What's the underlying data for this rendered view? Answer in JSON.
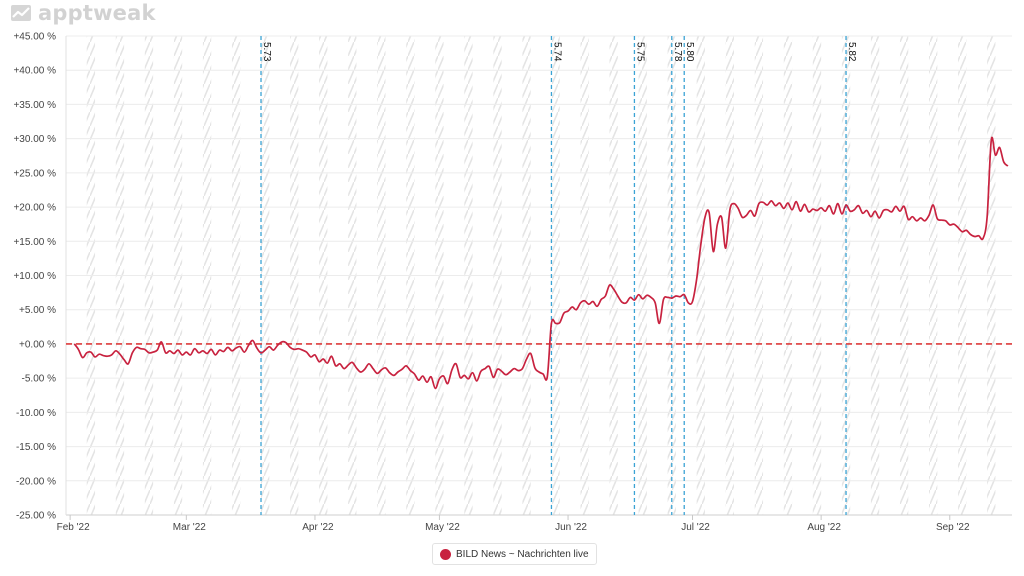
{
  "brand": {
    "name": "apptweak"
  },
  "chart_data": {
    "type": "line",
    "title": "",
    "xlabel": "",
    "ylabel": "",
    "x_range": [
      "2022-01-31",
      "2022-09-16"
    ],
    "ylim": [
      -25,
      45
    ],
    "ytick_values": [
      -25,
      -20,
      -15,
      -10,
      -5,
      0,
      5,
      10,
      15,
      20,
      25,
      30,
      35,
      40,
      45
    ],
    "ytick_labels": [
      "-25.00 %",
      "-20.00 %",
      "-15.00 %",
      "-10.00 %",
      "-5.00 %",
      "+0.00 %",
      "+5.00 %",
      "+10.00 %",
      "+15.00 %",
      "+20.00 %",
      "+25.00 %",
      "+30.00 %",
      "+35.00 %",
      "+40.00 %",
      "+45.00 %"
    ],
    "xticks": [
      {
        "date": "2022-02-01",
        "label": "Feb '22"
      },
      {
        "date": "2022-03-01",
        "label": "Mar '22"
      },
      {
        "date": "2022-04-01",
        "label": "Apr '22"
      },
      {
        "date": "2022-05-01",
        "label": "May '22"
      },
      {
        "date": "2022-06-01",
        "label": "Jun '22"
      },
      {
        "date": "2022-07-01",
        "label": "Jul '22"
      },
      {
        "date": "2022-08-01",
        "label": "Aug '22"
      },
      {
        "date": "2022-09-01",
        "label": "Sep '22"
      }
    ],
    "reference_line": {
      "y": 0,
      "color": "#dd3b3b",
      "style": "dashed"
    },
    "version_markers": [
      {
        "date": "2022-03-19",
        "label": "5.73"
      },
      {
        "date": "2022-05-28",
        "label": "5.74"
      },
      {
        "date": "2022-06-17",
        "label": "5.75"
      },
      {
        "date": "2022-06-26",
        "label": "5.78"
      },
      {
        "date": "2022-06-29",
        "label": "5.80"
      },
      {
        "date": "2022-08-07",
        "label": "5.82"
      }
    ],
    "series": [
      {
        "name": "BILD News ~ Nachrichten live",
        "color": "#c8223f",
        "points": [
          [
            "2022-02-02",
            0.0
          ],
          [
            "2022-02-03",
            -0.8
          ],
          [
            "2022-02-04",
            -2.0
          ],
          [
            "2022-02-05",
            -1.3
          ],
          [
            "2022-02-06",
            -1.2
          ],
          [
            "2022-02-07",
            -1.9
          ],
          [
            "2022-02-08",
            -1.5
          ],
          [
            "2022-02-09",
            -1.7
          ],
          [
            "2022-02-10",
            -1.8
          ],
          [
            "2022-02-11",
            -1.6
          ],
          [
            "2022-02-12",
            -1.0
          ],
          [
            "2022-02-13",
            -1.5
          ],
          [
            "2022-02-14",
            -2.3
          ],
          [
            "2022-02-15",
            -2.9
          ],
          [
            "2022-02-16",
            -1.3
          ],
          [
            "2022-02-17",
            -0.5
          ],
          [
            "2022-02-18",
            -0.7
          ],
          [
            "2022-02-19",
            -0.8
          ],
          [
            "2022-02-20",
            -1.3
          ],
          [
            "2022-02-21",
            -1.2
          ],
          [
            "2022-02-22",
            -0.9
          ],
          [
            "2022-02-23",
            0.3
          ],
          [
            "2022-02-24",
            -1.3
          ],
          [
            "2022-02-25",
            -1.0
          ],
          [
            "2022-02-26",
            -1.4
          ],
          [
            "2022-02-27",
            -0.9
          ],
          [
            "2022-02-28",
            -1.6
          ],
          [
            "2022-03-01",
            -1.2
          ],
          [
            "2022-03-02",
            -1.6
          ],
          [
            "2022-03-03",
            -0.7
          ],
          [
            "2022-03-04",
            -1.3
          ],
          [
            "2022-03-05",
            -1.0
          ],
          [
            "2022-03-06",
            -1.4
          ],
          [
            "2022-03-07",
            -0.8
          ],
          [
            "2022-03-08",
            -1.6
          ],
          [
            "2022-03-09",
            -0.9
          ],
          [
            "2022-03-10",
            -1.1
          ],
          [
            "2022-03-11",
            -0.5
          ],
          [
            "2022-03-12",
            -1.0
          ],
          [
            "2022-03-13",
            -0.6
          ],
          [
            "2022-03-14",
            -0.4
          ],
          [
            "2022-03-15",
            -1.2
          ],
          [
            "2022-03-16",
            -0.2
          ],
          [
            "2022-03-17",
            0.5
          ],
          [
            "2022-03-18",
            -0.6
          ],
          [
            "2022-03-19",
            -1.3
          ],
          [
            "2022-03-20",
            -0.9
          ],
          [
            "2022-03-21",
            -0.4
          ],
          [
            "2022-03-22",
            -0.9
          ],
          [
            "2022-03-23",
            -0.2
          ],
          [
            "2022-03-24",
            0.3
          ],
          [
            "2022-03-25",
            0.2
          ],
          [
            "2022-03-26",
            -0.5
          ],
          [
            "2022-03-27",
            -0.8
          ],
          [
            "2022-03-28",
            -0.7
          ],
          [
            "2022-03-29",
            -0.9
          ],
          [
            "2022-03-30",
            -1.2
          ],
          [
            "2022-03-31",
            -1.9
          ],
          [
            "2022-04-01",
            -1.6
          ],
          [
            "2022-04-02",
            -2.6
          ],
          [
            "2022-04-03",
            -2.2
          ],
          [
            "2022-04-04",
            -2.8
          ],
          [
            "2022-04-05",
            -1.8
          ],
          [
            "2022-04-06",
            -3.2
          ],
          [
            "2022-04-07",
            -2.9
          ],
          [
            "2022-04-08",
            -3.6
          ],
          [
            "2022-04-09",
            -3.1
          ],
          [
            "2022-04-10",
            -2.7
          ],
          [
            "2022-04-11",
            -3.5
          ],
          [
            "2022-04-12",
            -4.1
          ],
          [
            "2022-04-13",
            -3.7
          ],
          [
            "2022-04-14",
            -2.9
          ],
          [
            "2022-04-15",
            -3.6
          ],
          [
            "2022-04-16",
            -4.3
          ],
          [
            "2022-04-17",
            -3.8
          ],
          [
            "2022-04-18",
            -3.5
          ],
          [
            "2022-04-19",
            -4.2
          ],
          [
            "2022-04-20",
            -4.6
          ],
          [
            "2022-04-21",
            -4.1
          ],
          [
            "2022-04-22",
            -3.7
          ],
          [
            "2022-04-23",
            -3.2
          ],
          [
            "2022-04-24",
            -3.9
          ],
          [
            "2022-04-25",
            -4.4
          ],
          [
            "2022-04-26",
            -5.3
          ],
          [
            "2022-04-27",
            -4.7
          ],
          [
            "2022-04-28",
            -5.6
          ],
          [
            "2022-04-29",
            -4.8
          ],
          [
            "2022-04-30",
            -6.5
          ],
          [
            "2022-05-01",
            -5.1
          ],
          [
            "2022-05-02",
            -4.7
          ],
          [
            "2022-05-03",
            -5.8
          ],
          [
            "2022-05-04",
            -3.8
          ],
          [
            "2022-05-05",
            -2.9
          ],
          [
            "2022-05-06",
            -4.9
          ],
          [
            "2022-05-07",
            -4.6
          ],
          [
            "2022-05-08",
            -5.1
          ],
          [
            "2022-05-09",
            -4.2
          ],
          [
            "2022-05-10",
            -5.4
          ],
          [
            "2022-05-11",
            -4.0
          ],
          [
            "2022-05-12",
            -3.6
          ],
          [
            "2022-05-13",
            -3.3
          ],
          [
            "2022-05-14",
            -4.9
          ],
          [
            "2022-05-15",
            -3.7
          ],
          [
            "2022-05-16",
            -4.0
          ],
          [
            "2022-05-17",
            -4.5
          ],
          [
            "2022-05-18",
            -4.1
          ],
          [
            "2022-05-19",
            -3.6
          ],
          [
            "2022-05-20",
            -3.9
          ],
          [
            "2022-05-21",
            -3.6
          ],
          [
            "2022-05-22",
            -2.2
          ],
          [
            "2022-05-23",
            -1.4
          ],
          [
            "2022-05-24",
            -3.5
          ],
          [
            "2022-05-25",
            -4.1
          ],
          [
            "2022-05-26",
            -4.4
          ],
          [
            "2022-05-27",
            -4.8
          ],
          [
            "2022-05-28",
            3.0
          ],
          [
            "2022-05-29",
            3.0
          ],
          [
            "2022-05-30",
            3.1
          ],
          [
            "2022-05-31",
            4.5
          ],
          [
            "2022-06-01",
            4.8
          ],
          [
            "2022-06-02",
            5.4
          ],
          [
            "2022-06-03",
            5.0
          ],
          [
            "2022-06-04",
            6.0
          ],
          [
            "2022-06-05",
            6.3
          ],
          [
            "2022-06-06",
            5.8
          ],
          [
            "2022-06-07",
            6.2
          ],
          [
            "2022-06-08",
            5.5
          ],
          [
            "2022-06-09",
            6.5
          ],
          [
            "2022-06-10",
            7.0
          ],
          [
            "2022-06-11",
            8.6
          ],
          [
            "2022-06-12",
            8.0
          ],
          [
            "2022-06-13",
            7.0
          ],
          [
            "2022-06-14",
            6.1
          ],
          [
            "2022-06-15",
            6.0
          ],
          [
            "2022-06-16",
            6.8
          ],
          [
            "2022-06-17",
            6.4
          ],
          [
            "2022-06-18",
            7.2
          ],
          [
            "2022-06-19",
            6.6
          ],
          [
            "2022-06-20",
            7.1
          ],
          [
            "2022-06-21",
            6.8
          ],
          [
            "2022-06-22",
            6.0
          ],
          [
            "2022-06-23",
            3.0
          ],
          [
            "2022-06-24",
            6.5
          ],
          [
            "2022-06-25",
            6.8
          ],
          [
            "2022-06-26",
            6.7
          ],
          [
            "2022-06-27",
            7.0
          ],
          [
            "2022-06-28",
            6.9
          ],
          [
            "2022-06-29",
            7.2
          ],
          [
            "2022-06-30",
            6.0
          ],
          [
            "2022-07-01",
            6.2
          ],
          [
            "2022-07-02",
            9.5
          ],
          [
            "2022-07-03",
            14.5
          ],
          [
            "2022-07-04",
            18.5
          ],
          [
            "2022-07-05",
            19.2
          ],
          [
            "2022-07-06",
            13.5
          ],
          [
            "2022-07-07",
            17.5
          ],
          [
            "2022-07-08",
            18.5
          ],
          [
            "2022-07-09",
            14.0
          ],
          [
            "2022-07-10",
            19.6
          ],
          [
            "2022-07-11",
            20.5
          ],
          [
            "2022-07-12",
            19.8
          ],
          [
            "2022-07-13",
            18.5
          ],
          [
            "2022-07-14",
            18.8
          ],
          [
            "2022-07-15",
            19.5
          ],
          [
            "2022-07-16",
            18.7
          ],
          [
            "2022-07-17",
            20.5
          ],
          [
            "2022-07-18",
            20.7
          ],
          [
            "2022-07-19",
            20.3
          ],
          [
            "2022-07-20",
            20.9
          ],
          [
            "2022-07-21",
            20.2
          ],
          [
            "2022-07-22",
            20.6
          ],
          [
            "2022-07-23",
            19.8
          ],
          [
            "2022-07-24",
            20.6
          ],
          [
            "2022-07-25",
            19.6
          ],
          [
            "2022-07-26",
            20.8
          ],
          [
            "2022-07-27",
            19.4
          ],
          [
            "2022-07-28",
            20.4
          ],
          [
            "2022-07-29",
            19.3
          ],
          [
            "2022-07-30",
            19.7
          ],
          [
            "2022-07-31",
            19.5
          ],
          [
            "2022-08-01",
            19.9
          ],
          [
            "2022-08-02",
            19.4
          ],
          [
            "2022-08-03",
            20.2
          ],
          [
            "2022-08-04",
            19.0
          ],
          [
            "2022-08-05",
            20.5
          ],
          [
            "2022-08-06",
            19.0
          ],
          [
            "2022-08-07",
            20.3
          ],
          [
            "2022-08-08",
            19.4
          ],
          [
            "2022-08-09",
            19.6
          ],
          [
            "2022-08-10",
            20.2
          ],
          [
            "2022-08-11",
            19.1
          ],
          [
            "2022-08-12",
            19.5
          ],
          [
            "2022-08-13",
            18.6
          ],
          [
            "2022-08-14",
            19.4
          ],
          [
            "2022-08-15",
            18.4
          ],
          [
            "2022-08-16",
            19.5
          ],
          [
            "2022-08-17",
            19.6
          ],
          [
            "2022-08-18",
            19.3
          ],
          [
            "2022-08-19",
            20.1
          ],
          [
            "2022-08-20",
            19.4
          ],
          [
            "2022-08-21",
            20.1
          ],
          [
            "2022-08-22",
            18.2
          ],
          [
            "2022-08-23",
            18.6
          ],
          [
            "2022-08-24",
            18.0
          ],
          [
            "2022-08-25",
            18.4
          ],
          [
            "2022-08-26",
            18.0
          ],
          [
            "2022-08-27",
            18.8
          ],
          [
            "2022-08-28",
            20.3
          ],
          [
            "2022-08-29",
            18.3
          ],
          [
            "2022-08-30",
            18.1
          ],
          [
            "2022-08-31",
            18.0
          ],
          [
            "2022-09-01",
            17.4
          ],
          [
            "2022-09-02",
            17.5
          ],
          [
            "2022-09-03",
            17.0
          ],
          [
            "2022-09-04",
            16.4
          ],
          [
            "2022-09-05",
            16.6
          ],
          [
            "2022-09-06",
            16.0
          ],
          [
            "2022-09-07",
            15.7
          ],
          [
            "2022-09-08",
            15.8
          ],
          [
            "2022-09-09",
            15.4
          ],
          [
            "2022-09-10",
            18.5
          ],
          [
            "2022-09-11",
            29.8
          ],
          [
            "2022-09-12",
            27.6
          ],
          [
            "2022-09-13",
            28.7
          ],
          [
            "2022-09-14",
            26.6
          ],
          [
            "2022-09-15",
            26.0
          ]
        ]
      }
    ],
    "legend": {
      "position": "bottom-center"
    },
    "grid": {
      "horizontal": true,
      "vertical": false,
      "weekend_hatching": true
    },
    "colors": {
      "axis_text": "#444444",
      "version_line": "#3aa3d4",
      "grid": "#ececec"
    }
  }
}
